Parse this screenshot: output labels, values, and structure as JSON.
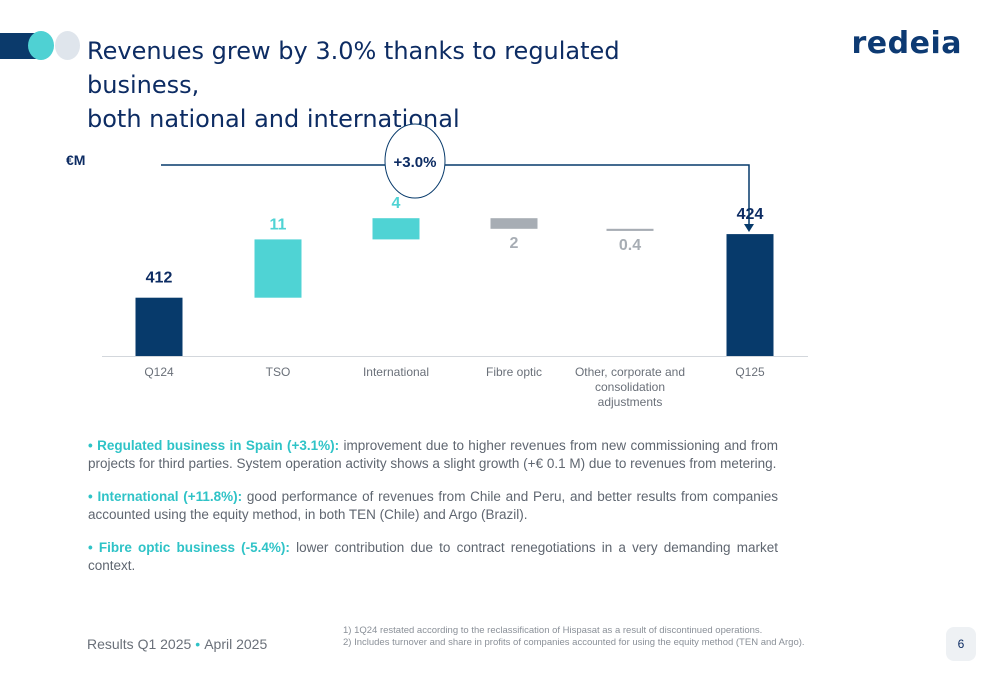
{
  "header": {
    "title_line1": "Revenues grew by 3.0% thanks to regulated business,",
    "title_line2": "both national and international",
    "logo": "redeia"
  },
  "colors": {
    "navy": "#073a6b",
    "teal": "#4fd3d4",
    "grey": "#a7adb4",
    "dark_text": "#0d2c63"
  },
  "chart_data": {
    "type": "waterfall",
    "unit": "€M",
    "categories": [
      "Q124",
      "TSO",
      "International",
      "Fibre optic",
      "Other, corporate and consolidation adjustments",
      "Q125"
    ],
    "category_lines": [
      [
        "Q124"
      ],
      [
        "TSO"
      ],
      [
        "International"
      ],
      [
        "Fibre optic"
      ],
      [
        "Other, corporate and",
        "consolidation",
        "adjustments"
      ],
      [
        "Q125"
      ]
    ],
    "values": [
      412,
      11,
      4,
      -2,
      -0.4,
      424
    ],
    "labels": [
      "412",
      "11",
      "4",
      "2",
      "0.4",
      "424"
    ],
    "kinds": [
      "total",
      "increase",
      "increase",
      "decrease",
      "decrease",
      "total"
    ],
    "growth_label": "+3.0%"
  },
  "bullets": [
    {
      "lead": "• Regulated business in Spain (+3.1%):",
      "text": " improvement due to higher revenues from new commissioning and from projects for third parties. System operation activity shows a slight growth (+€ 0.1 M) due to revenues from metering."
    },
    {
      "lead": "• International (+11.8%):",
      "text": " good performance of revenues from Chile and Peru, and better results from companies accounted using the equity method, in both TEN (Chile) and Argo (Brazil)."
    },
    {
      "lead": "• Fibre optic business (-5.4%):",
      "text": " lower contribution due to contract renegotiations in a very demanding market context."
    }
  ],
  "footer": {
    "left_main": "Results Q1 2025",
    "left_sep": "•",
    "left_date": "April 2025",
    "footnote1": "1) 1Q24 restated according to the reclassification of Hispasat as a result of discontinued operations.",
    "footnote2": "2) Includes turnover and share in profits of companies accounted for using the equity method (TEN and Argo).",
    "page_number": "6"
  }
}
